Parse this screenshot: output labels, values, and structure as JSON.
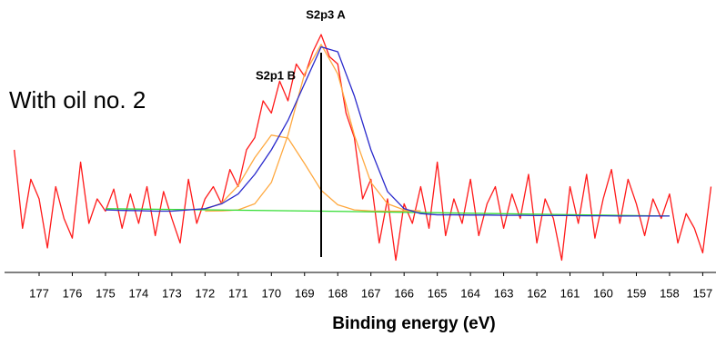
{
  "chart_data": {
    "type": "line",
    "xlabel": "Binding energy (eV)",
    "annotations": [
      "S2p3 A",
      "S2p1 B",
      "With oil no. 2"
    ],
    "xlim": [
      177.85,
      156.6
    ],
    "ylim": [
      0,
      100
    ],
    "xticks": [
      177,
      176,
      175,
      174,
      173,
      172,
      171,
      170,
      169,
      168,
      167,
      166,
      165,
      164,
      163,
      162,
      161,
      160,
      159,
      158,
      157
    ],
    "vline": 168.5,
    "series": [
      {
        "color": "#ff1a1a",
        "x": [
          177.75,
          177.5,
          177.25,
          177,
          176.75,
          176.5,
          176.25,
          176,
          175.75,
          175.5,
          175.25,
          175,
          174.75,
          174.5,
          174.25,
          174,
          173.75,
          173.5,
          173.25,
          173,
          172.75,
          172.5,
          172.25,
          172,
          171.75,
          171.5,
          171.25,
          171,
          170.75,
          170.5,
          170.25,
          170,
          169.75,
          169.5,
          169.25,
          169,
          168.75,
          168.5,
          168.25,
          168,
          167.75,
          167.5,
          167.25,
          167,
          166.75,
          166.5,
          166.25,
          166,
          165.75,
          165.5,
          165.25,
          165,
          164.75,
          164.5,
          164.25,
          164,
          163.75,
          163.5,
          163.25,
          163,
          162.75,
          162.5,
          162.25,
          162,
          161.75,
          161.5,
          161.25,
          161,
          160.75,
          160.5,
          160.25,
          160,
          159.75,
          159.5,
          159.25,
          159,
          158.75,
          158.5,
          158.25,
          158,
          157.75,
          157.5,
          157.25,
          157,
          156.75
        ],
        "values": [
          50,
          18,
          38,
          30,
          10,
          35,
          22,
          14,
          45,
          20,
          30,
          25,
          34,
          18,
          32,
          20,
          35,
          15,
          33,
          22,
          12,
          38,
          20,
          30,
          35,
          28,
          42,
          35,
          50,
          55,
          70,
          65,
          78,
          70,
          85,
          80,
          90,
          97,
          88,
          85,
          65,
          55,
          30,
          38,
          12,
          30,
          5,
          28,
          20,
          35,
          18,
          45,
          15,
          30,
          20,
          38,
          15,
          28,
          35,
          18,
          32,
          22,
          40,
          12,
          30,
          22,
          5,
          35,
          20,
          40,
          14,
          30,
          42,
          20,
          38,
          28,
          15,
          30,
          22,
          32,
          12,
          24,
          18,
          8,
          35
        ]
      },
      {
        "color": "#ffa940",
        "x": [
          172,
          171.5,
          171,
          170.5,
          170,
          169.5,
          169,
          168.5,
          168,
          167.5,
          167,
          166.5,
          166,
          165.5
        ],
        "values": [
          25,
          25.1,
          25.5,
          28,
          36.7,
          56,
          81,
          93,
          81,
          56,
          36.7,
          28,
          25.5,
          25.1
        ]
      },
      {
        "color": "#ffa940",
        "x": [
          172,
          171.5,
          171,
          170.5,
          170,
          169.5,
          169,
          168.5,
          168,
          167.5,
          167,
          166.5,
          166,
          165.5
        ],
        "values": [
          25.7,
          28.3,
          35.4,
          46.8,
          56,
          54.8,
          44.4,
          33.5,
          27.6,
          25.5,
          25.1,
          25,
          25,
          25
        ]
      },
      {
        "color": "#33dd33",
        "x": [
          175,
          168.5,
          158
        ],
        "values": [
          26,
          25,
          23
        ]
      },
      {
        "color": "#2a2acc",
        "x": [
          175,
          174.5,
          174,
          173.5,
          173,
          172.5,
          172,
          171.5,
          171,
          170.5,
          170,
          169.5,
          169,
          168.5,
          168,
          167.5,
          167,
          166.5,
          166,
          165.5,
          165,
          164.5,
          164,
          163.5,
          163,
          162.5,
          162,
          161.5,
          161,
          160.5,
          160,
          159.5,
          159,
          158.5,
          158
        ],
        "values": [
          25.5,
          25.3,
          25.2,
          25,
          25,
          25.5,
          26,
          28,
          32,
          40,
          50,
          62,
          77,
          92,
          90,
          72,
          50,
          33,
          26,
          24,
          23.5,
          23.5,
          23.4,
          23.4,
          23.3,
          23.3,
          23.2,
          23.2,
          23.2,
          23.1,
          23.1,
          23,
          23,
          23,
          23
        ]
      }
    ]
  }
}
